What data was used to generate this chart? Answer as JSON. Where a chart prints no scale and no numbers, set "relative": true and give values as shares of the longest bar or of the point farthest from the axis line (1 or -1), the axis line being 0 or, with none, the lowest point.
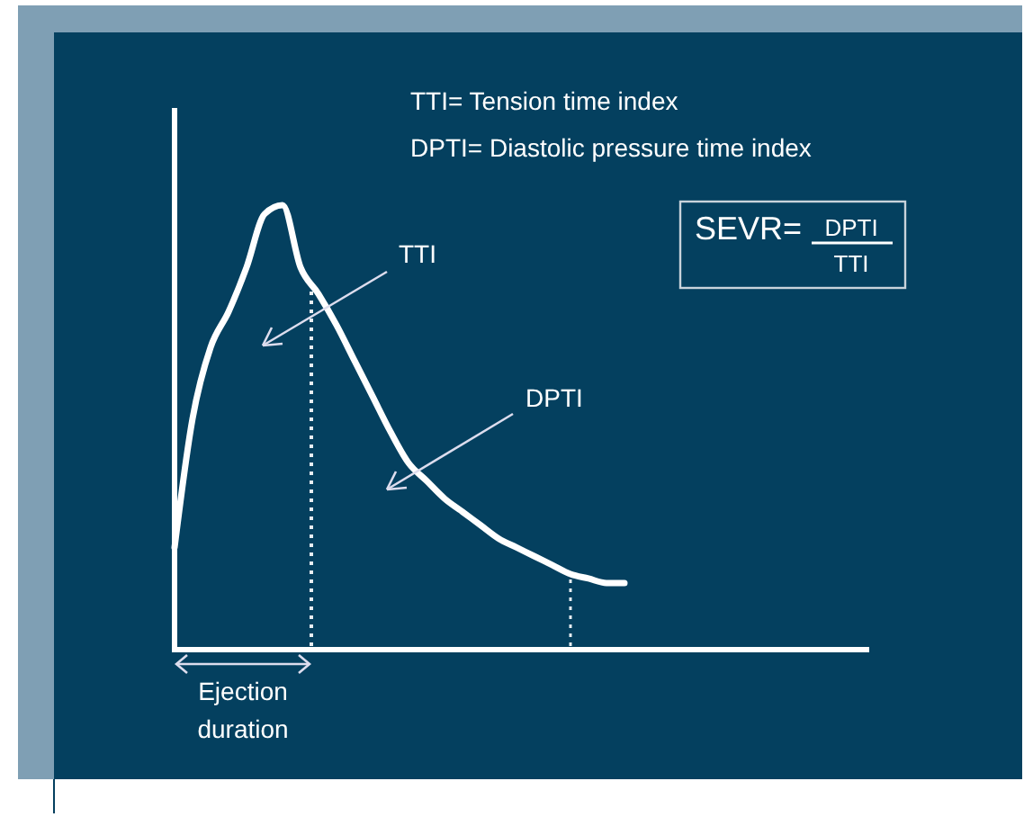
{
  "chart_data": {
    "type": "line",
    "relative": true,
    "categories": [
      null,
      null,
      null,
      null,
      null,
      null,
      null,
      null,
      null,
      null,
      null,
      null,
      null,
      null,
      null,
      null,
      null,
      null,
      null,
      null,
      null,
      null,
      null,
      null,
      null,
      null
    ],
    "series": [
      {
        "color": "#ffffff",
        "values": [
          0.23,
          0.52,
          0.68,
          0.76,
          0.86,
          0.98,
          1.0,
          0.86,
          0.8,
          0.73,
          0.65,
          0.57,
          0.49,
          0.42,
          0.38,
          0.34,
          0.31,
          0.28,
          0.25,
          0.23,
          0.21,
          0.19,
          0.17,
          0.16,
          0.15,
          0.15
        ]
      }
    ],
    "annotations": [
      "TTI= Tension time index",
      "DPTI= Diastolic pressure time index",
      "SEVR=",
      "DPTI",
      "TTI",
      "TTI",
      "DPTI",
      "Ejection duration"
    ],
    "marker": "none",
    "line_style": "solid",
    "grid": false
  }
}
